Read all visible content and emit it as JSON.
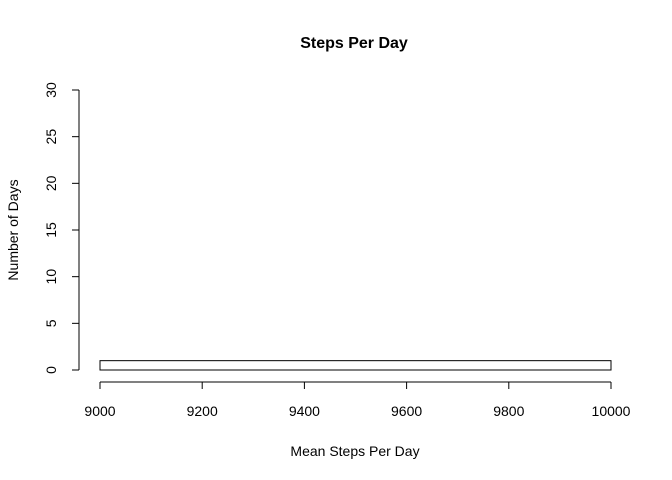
{
  "chart_data": {
    "type": "bar",
    "title": "Steps Per Day",
    "xlabel": "Mean Steps Per Day",
    "ylabel": "Number of Days",
    "xlim": [
      9000,
      10000
    ],
    "ylim": [
      0,
      30
    ],
    "x_ticks": [
      9000,
      9200,
      9400,
      9600,
      9800,
      10000
    ],
    "y_ticks": [
      0,
      5,
      10,
      15,
      20,
      25,
      30
    ],
    "bins": [
      {
        "start": 9000,
        "end": 10000,
        "count": 1
      }
    ],
    "grid": false,
    "legend": "none",
    "colors": {
      "bar_fill": "#ffffff",
      "bar_stroke": "#000000",
      "text": "#000000"
    }
  }
}
